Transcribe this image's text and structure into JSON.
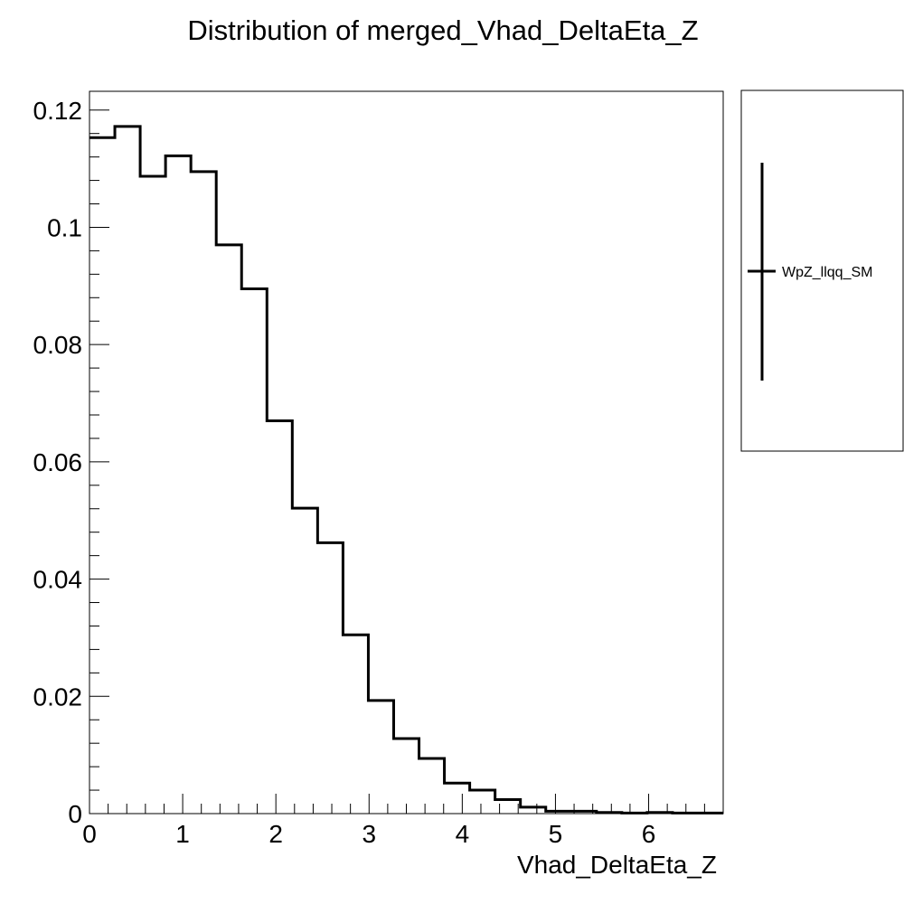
{
  "chart_data": {
    "type": "bar",
    "title": "Distribution of merged_Vhad_DeltaEta_Z",
    "xlabel": "Vhad_DeltaEta_Z",
    "ylabel": "",
    "xlim": [
      0,
      6.8
    ],
    "ylim": [
      0,
      0.1232
    ],
    "bin_width": 0.272,
    "x_ticks": [
      0,
      1,
      2,
      3,
      4,
      5,
      6
    ],
    "x_tick_labels": [
      "0",
      "1",
      "2",
      "3",
      "4",
      "5",
      "6"
    ],
    "y_ticks": [
      0,
      0.02,
      0.04,
      0.06,
      0.08,
      0.1,
      0.12
    ],
    "y_tick_labels": [
      "0",
      "0.02",
      "0.04",
      "0.06",
      "0.08",
      "0.1",
      "0.12"
    ],
    "grid": false,
    "legend_position": "right",
    "series": [
      {
        "name": "WpZ_llqq_SM",
        "color": "#000000",
        "style": "step",
        "bin_edges": [
          0,
          0.272,
          0.544,
          0.816,
          1.088,
          1.36,
          1.632,
          1.904,
          2.176,
          2.448,
          2.72,
          2.992,
          3.264,
          3.536,
          3.808,
          4.08,
          4.352,
          4.624,
          4.896,
          5.168,
          5.44,
          5.712,
          5.984,
          6.256,
          6.528,
          6.8
        ],
        "values": [
          0.1153,
          0.1172,
          0.1087,
          0.1122,
          0.1095,
          0.097,
          0.0895,
          0.067,
          0.0521,
          0.0462,
          0.0305,
          0.0193,
          0.0128,
          0.0094,
          0.0052,
          0.004,
          0.0024,
          0.0011,
          0.0004,
          0.0004,
          0.0002,
          0.0001,
          0.0002,
          0.0001,
          0.0001
        ]
      }
    ]
  }
}
